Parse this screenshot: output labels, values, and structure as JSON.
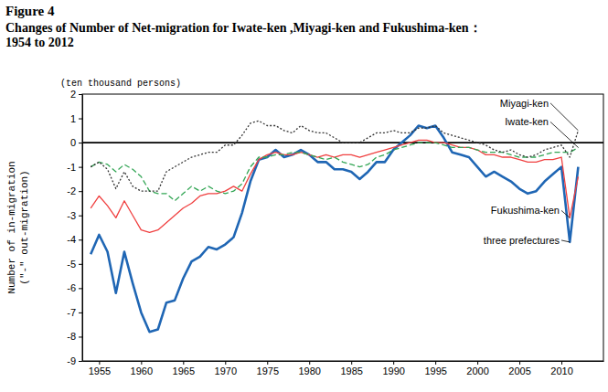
{
  "chart_data": {
    "type": "line",
    "title": "Figure 4",
    "subtitle": [
      "Changes of Number of Net-migration for Iwate-ken ,Miyagi-ken and Fukushima-ken：",
      "1954 to 2012"
    ],
    "ylabel": [
      "Number of in-migration",
      "(\"-\" out-migration)"
    ],
    "yunit": "(ten thousand persons)",
    "x": [
      1954,
      1955,
      1956,
      1957,
      1958,
      1959,
      1960,
      1961,
      1962,
      1963,
      1964,
      1965,
      1966,
      1967,
      1968,
      1969,
      1970,
      1971,
      1972,
      1973,
      1974,
      1975,
      1976,
      1977,
      1978,
      1979,
      1980,
      1981,
      1982,
      1983,
      1984,
      1985,
      1986,
      1987,
      1988,
      1989,
      1990,
      1991,
      1992,
      1993,
      1994,
      1995,
      1996,
      1997,
      1998,
      1999,
      2000,
      2001,
      2002,
      2003,
      2004,
      2005,
      2006,
      2007,
      2008,
      2009,
      2010,
      2011,
      2012
    ],
    "xlim": [
      1953,
      2015
    ],
    "xticks": [
      1955,
      1960,
      1965,
      1970,
      1975,
      1980,
      1985,
      1990,
      1995,
      2000,
      2005,
      2010
    ],
    "ylim": [
      -9,
      2
    ],
    "yticks": [
      -9,
      -8,
      -7,
      -6,
      -5,
      -4,
      -3,
      -2,
      -1,
      0,
      1,
      2
    ],
    "grid": false,
    "series": [
      {
        "name": "three prefectures",
        "color": "#1f66b4",
        "line_style": "solid",
        "values": [
          -4.6,
          -3.8,
          -4.5,
          -6.2,
          -4.5,
          -5.8,
          -7.0,
          -7.8,
          -7.7,
          -6.6,
          -6.5,
          -5.6,
          -4.9,
          -4.7,
          -4.3,
          -4.4,
          -4.2,
          -3.9,
          -2.9,
          -1.6,
          -0.7,
          -0.6,
          -0.3,
          -0.6,
          -0.5,
          -0.3,
          -0.5,
          -0.8,
          -0.8,
          -1.1,
          -1.1,
          -1.2,
          -1.5,
          -1.2,
          -0.8,
          -0.8,
          -0.3,
          0.0,
          0.3,
          0.7,
          0.6,
          0.7,
          0.2,
          -0.4,
          -0.5,
          -0.6,
          -1.0,
          -1.4,
          -1.2,
          -1.4,
          -1.6,
          -1.9,
          -2.1,
          -2.0,
          -1.6,
          -1.3,
          -1.0,
          -4.1,
          -1.0
        ]
      },
      {
        "name": "Fukushima-ken",
        "color": "#f04040",
        "line_style": "solid",
        "values": [
          -2.7,
          -2.2,
          -2.6,
          -3.1,
          -2.4,
          -3.0,
          -3.6,
          -3.7,
          -3.6,
          -3.3,
          -3.0,
          -2.7,
          -2.5,
          -2.2,
          -2.1,
          -2.1,
          -2.0,
          -1.8,
          -2.0,
          -1.3,
          -0.7,
          -0.5,
          -0.4,
          -0.5,
          -0.5,
          -0.4,
          -0.5,
          -0.6,
          -0.5,
          -0.6,
          -0.5,
          -0.5,
          -0.6,
          -0.5,
          -0.4,
          -0.3,
          -0.2,
          -0.1,
          0.0,
          0.1,
          0.1,
          0.0,
          0.0,
          -0.1,
          -0.2,
          -0.2,
          -0.3,
          -0.5,
          -0.5,
          -0.6,
          -0.6,
          -0.7,
          -0.8,
          -0.8,
          -0.7,
          -0.7,
          -0.6,
          -3.1,
          -1.4
        ]
      },
      {
        "name": "Iwate-ken",
        "color": "#33a655",
        "line_style": "dashed",
        "values": [
          -1.0,
          -0.8,
          -0.9,
          -1.2,
          -0.9,
          -1.1,
          -1.4,
          -2.0,
          -2.1,
          -2.1,
          -2.4,
          -2.1,
          -1.8,
          -2.0,
          -1.8,
          -2.0,
          -2.1,
          -2.0,
          -1.7,
          -1.0,
          -0.6,
          -0.6,
          -0.5,
          -0.5,
          -0.4,
          -0.4,
          -0.5,
          -0.6,
          -0.7,
          -0.6,
          -0.8,
          -0.9,
          -1.0,
          -0.9,
          -0.6,
          -0.5,
          -0.3,
          -0.2,
          -0.1,
          0.0,
          0.0,
          0.0,
          -0.1,
          -0.2,
          -0.2,
          -0.2,
          -0.3,
          -0.4,
          -0.4,
          -0.4,
          -0.5,
          -0.6,
          -0.6,
          -0.6,
          -0.5,
          -0.4,
          -0.4,
          -0.4,
          -0.2
        ]
      },
      {
        "name": "Miyagi-ken",
        "color": "#333333",
        "line_style": "dotted",
        "values": [
          -1.0,
          -0.8,
          -1.1,
          -1.9,
          -1.2,
          -1.8,
          -2.0,
          -2.0,
          -2.0,
          -1.2,
          -1.0,
          -0.8,
          -0.6,
          -0.5,
          -0.4,
          -0.4,
          -0.1,
          -0.1,
          0.3,
          0.8,
          0.9,
          0.7,
          0.7,
          0.5,
          0.4,
          0.7,
          0.5,
          0.4,
          0.4,
          0.2,
          0.0,
          0.0,
          0.0,
          0.2,
          0.4,
          0.4,
          0.5,
          0.4,
          0.4,
          0.6,
          0.6,
          0.7,
          0.4,
          0.3,
          0.2,
          0.1,
          0.0,
          -0.1,
          -0.3,
          -0.4,
          -0.3,
          -0.5,
          -0.6,
          -0.5,
          -0.3,
          -0.2,
          -0.1,
          -0.6,
          0.5
        ]
      }
    ]
  }
}
